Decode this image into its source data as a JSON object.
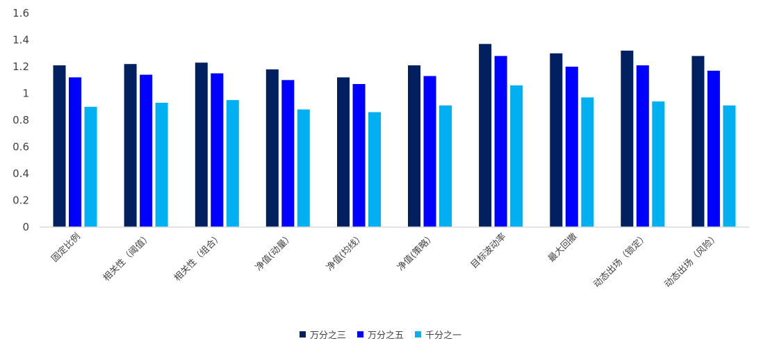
{
  "chart_data": {
    "type": "bar",
    "categories": [
      "固定比例",
      "相关性（阈值）",
      "相关性（组合）",
      "净值(动量）",
      "净值(均线）",
      "净值(策略）",
      "目标波动率",
      "最大回撤",
      "动态出场（锁定）",
      "动态出场（风险）"
    ],
    "series": [
      {
        "name": "万分之三",
        "color": "#002060",
        "values": [
          1.21,
          1.22,
          1.23,
          1.18,
          1.12,
          1.21,
          1.37,
          1.3,
          1.32,
          1.28
        ]
      },
      {
        "name": "万分之五",
        "color": "#0000ff",
        "values": [
          1.12,
          1.14,
          1.15,
          1.1,
          1.07,
          1.13,
          1.28,
          1.2,
          1.21,
          1.17
        ]
      },
      {
        "name": "千分之一",
        "color": "#00b0f0",
        "values": [
          0.9,
          0.93,
          0.95,
          0.88,
          0.86,
          0.91,
          1.06,
          0.97,
          0.94,
          0.91
        ]
      }
    ],
    "yticks": [
      "0",
      "0.2",
      "0.4",
      "0.6",
      "0.8",
      "1",
      "1.2",
      "1.4",
      "1.6"
    ],
    "ylim": [
      0,
      1.6
    ],
    "grid": false,
    "legend_position": "bottom"
  }
}
